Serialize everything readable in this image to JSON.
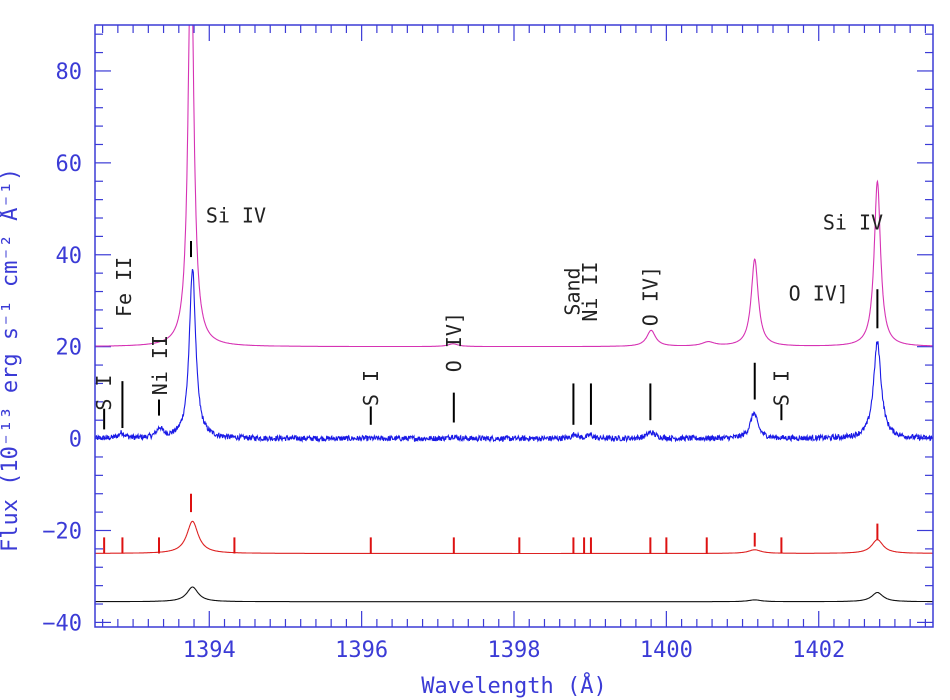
{
  "chart_data": {
    "type": "line",
    "xlabel": "Wavelength (Å)",
    "ylabel": "Flux (10⁻¹³ erg s⁻¹ cm⁻² Å⁻¹)",
    "xlim": [
      1392.5,
      1403.5
    ],
    "ylim": [
      -41,
      90
    ],
    "x_ticks": [
      1394,
      1396,
      1398,
      1400,
      1402
    ],
    "x_tick_labels": [
      "1394",
      "1396",
      "1398",
      "1400",
      "1402"
    ],
    "y_ticks": [
      -40,
      -20,
      0,
      20,
      40,
      60,
      80
    ],
    "y_tick_labels": [
      "−40",
      "−20",
      "0",
      "20",
      "40",
      "60",
      "80"
    ],
    "grid": false,
    "colors": {
      "axes": "#3b3bd6",
      "marker": "#000000",
      "red_marker": "#dd1111"
    },
    "series": [
      {
        "color": "#d633b4",
        "baseline": 20,
        "peaks": [
          {
            "x": 1393.76,
            "amp": 90,
            "width": 0.045
          },
          {
            "x": 1397.2,
            "amp": 0.6,
            "width": 0.08
          },
          {
            "x": 1399.8,
            "amp": 3.5,
            "width": 0.07
          },
          {
            "x": 1400.55,
            "amp": 0.9,
            "width": 0.1
          },
          {
            "x": 1401.16,
            "amp": 19,
            "width": 0.055
          },
          {
            "x": 1402.77,
            "amp": 36,
            "width": 0.05
          }
        ]
      },
      {
        "color": "#1a1ae6",
        "baseline": 0,
        "noise": 0.6,
        "peaks": [
          {
            "x": 1392.85,
            "amp": 1.2,
            "width": 0.05
          },
          {
            "x": 1393.35,
            "amp": 2.0,
            "width": 0.05
          },
          {
            "x": 1393.78,
            "amp": 37,
            "width": 0.05
          },
          {
            "x": 1397.2,
            "amp": 0.5,
            "width": 0.05
          },
          {
            "x": 1398.8,
            "amp": 1.0,
            "width": 0.04
          },
          {
            "x": 1399.0,
            "amp": 0.8,
            "width": 0.04
          },
          {
            "x": 1399.8,
            "amp": 1.3,
            "width": 0.07
          },
          {
            "x": 1401.15,
            "amp": 5.5,
            "width": 0.06
          },
          {
            "x": 1402.77,
            "amp": 21,
            "width": 0.06
          }
        ]
      },
      {
        "color": "#dd2222",
        "baseline": -25,
        "peaks": [
          {
            "x": 1393.78,
            "amp": 7,
            "width": 0.09
          },
          {
            "x": 1401.16,
            "amp": 0.8,
            "width": 0.1
          },
          {
            "x": 1402.77,
            "amp": 3,
            "width": 0.09
          }
        ]
      },
      {
        "color": "#111111",
        "baseline": -35.5,
        "peaks": [
          {
            "x": 1393.78,
            "amp": 3.2,
            "width": 0.09
          },
          {
            "x": 1401.16,
            "amp": 0.4,
            "width": 0.1
          },
          {
            "x": 1402.77,
            "amp": 2,
            "width": 0.09
          }
        ]
      }
    ],
    "black_markers": [
      {
        "x": 1392.62,
        "y0": 2,
        "y1": 6.5
      },
      {
        "x": 1392.86,
        "y0": 2.3,
        "y1": 12.5
      },
      {
        "x": 1393.34,
        "y0": 5,
        "y1": 8.5
      },
      {
        "x": 1393.76,
        "y0": 39.5,
        "y1": 43
      },
      {
        "x": 1396.12,
        "y0": 3,
        "y1": 7
      },
      {
        "x": 1397.21,
        "y0": 3.5,
        "y1": 10
      },
      {
        "x": 1398.78,
        "y0": 3,
        "y1": 12
      },
      {
        "x": 1399.01,
        "y0": 3,
        "y1": 12
      },
      {
        "x": 1399.79,
        "y0": 4,
        "y1": 12
      },
      {
        "x": 1401.16,
        "y0": 8.5,
        "y1": 16.5
      },
      {
        "x": 1401.51,
        "y0": 4,
        "y1": 7.5
      },
      {
        "x": 1402.77,
        "y0": 24,
        "y1": 32.5
      }
    ],
    "red_markers": [
      {
        "x": 1392.62,
        "y0": -25,
        "y1": -21.5
      },
      {
        "x": 1392.86,
        "y0": -25,
        "y1": -21.5
      },
      {
        "x": 1393.34,
        "y0": -25,
        "y1": -21.5
      },
      {
        "x": 1393.76,
        "y0": -16,
        "y1": -12
      },
      {
        "x": 1394.33,
        "y0": -25,
        "y1": -21.5
      },
      {
        "x": 1396.12,
        "y0": -25,
        "y1": -21.5
      },
      {
        "x": 1397.21,
        "y0": -25,
        "y1": -21.5
      },
      {
        "x": 1398.07,
        "y0": -25,
        "y1": -21.5
      },
      {
        "x": 1398.78,
        "y0": -25,
        "y1": -21.5
      },
      {
        "x": 1398.92,
        "y0": -25,
        "y1": -21.5
      },
      {
        "x": 1399.01,
        "y0": -25,
        "y1": -21.5
      },
      {
        "x": 1399.79,
        "y0": -25,
        "y1": -21.5
      },
      {
        "x": 1400.0,
        "y0": -25,
        "y1": -21.5
      },
      {
        "x": 1400.53,
        "y0": -25,
        "y1": -21.5
      },
      {
        "x": 1401.16,
        "y0": -23.5,
        "y1": -20.5
      },
      {
        "x": 1401.51,
        "y0": -25,
        "y1": -21.5
      },
      {
        "x": 1402.77,
        "y0": -22,
        "y1": -18.5
      }
    ],
    "annotations": [
      {
        "text": "S I",
        "x": 1392.62,
        "y": 10,
        "vertical": true
      },
      {
        "text": "Fe II",
        "x": 1392.88,
        "y": 33,
        "vertical": true
      },
      {
        "text": "Ni II",
        "x": 1393.35,
        "y": 16,
        "vertical": true
      },
      {
        "text": "Si IV",
        "x": 1394.35,
        "y": 47,
        "vertical": false
      },
      {
        "text": "S I",
        "x": 1396.12,
        "y": 11,
        "vertical": true
      },
      {
        "text": "O IV]",
        "x": 1397.21,
        "y": 21,
        "vertical": true
      },
      {
        "text": "Sand",
        "x": 1398.77,
        "y": 32,
        "vertical": true
      },
      {
        "text": "Ni II",
        "x": 1399.0,
        "y": 32,
        "vertical": true
      },
      {
        "text": "O IV]",
        "x": 1399.79,
        "y": 31,
        "vertical": true
      },
      {
        "text": "O IV]",
        "x": 1402.0,
        "y": 30,
        "vertical": false
      },
      {
        "text": "S I",
        "x": 1401.51,
        "y": 11,
        "vertical": true
      },
      {
        "text": "Si IV",
        "x": 1402.45,
        "y": 45.5,
        "vertical": false
      }
    ]
  }
}
